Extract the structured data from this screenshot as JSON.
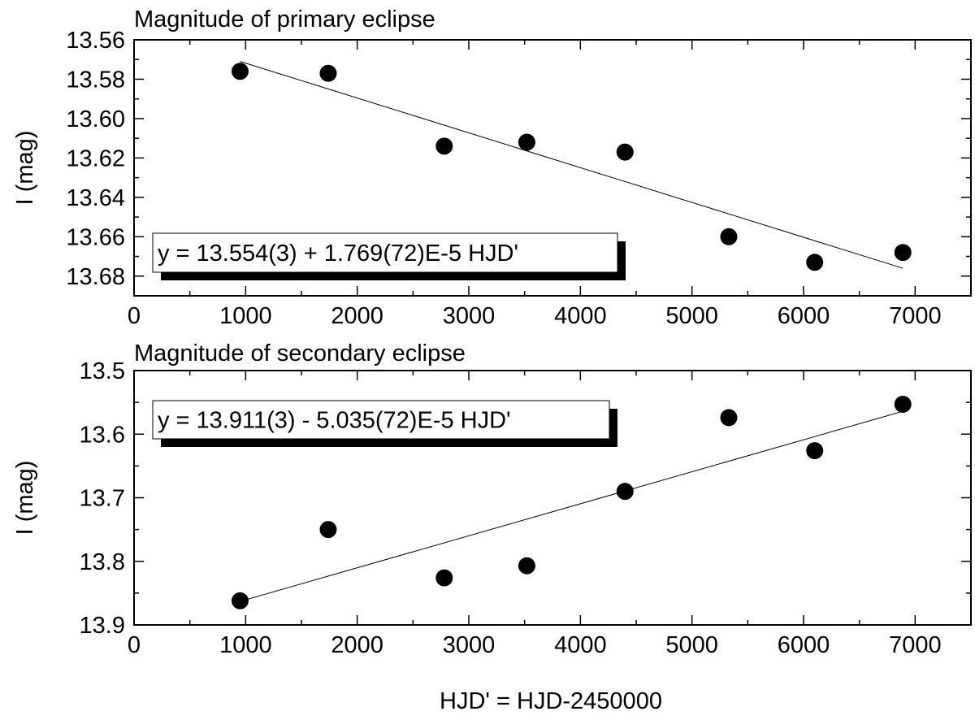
{
  "xlabel": "HJD' = HJD-2450000",
  "chart_data": [
    {
      "type": "scatter",
      "title": "Magnitude of primary eclipse",
      "xlabel": "",
      "ylabel": "I (mag)",
      "xlim": [
        0,
        7500
      ],
      "ylim": [
        13.56,
        13.69
      ],
      "y_inverted": true,
      "xticks": [
        0,
        1000,
        2000,
        3000,
        4000,
        5000,
        6000,
        7000
      ],
      "xtick_labels": [
        "0",
        "1000",
        "2000",
        "3000",
        "4000",
        "5000",
        "6000",
        "7000"
      ],
      "yticks": [
        13.56,
        13.58,
        13.6,
        13.62,
        13.64,
        13.66,
        13.68
      ],
      "ytick_labels": [
        "13.56",
        "13.58",
        "13.60",
        "13.62",
        "13.64",
        "13.66",
        "13.68"
      ],
      "x": [
        950,
        1740,
        2780,
        3520,
        4400,
        5330,
        6100,
        6890
      ],
      "y": [
        13.576,
        13.577,
        13.614,
        13.612,
        13.617,
        13.66,
        13.673,
        13.668
      ],
      "fit": {
        "x": [
          950,
          6890
        ],
        "y": [
          13.571,
          13.676
        ]
      },
      "annotation": "y = 13.554(3) + 1.769(72)E-5 HJD'",
      "grid": false
    },
    {
      "type": "scatter",
      "title": "Magnitude of secondary eclipse",
      "xlabel": "",
      "ylabel": "I (mag)",
      "xlim": [
        0,
        7500
      ],
      "ylim": [
        13.5,
        13.9
      ],
      "y_inverted": true,
      "xticks": [
        0,
        1000,
        2000,
        3000,
        4000,
        5000,
        6000,
        7000
      ],
      "xtick_labels": [
        "0",
        "1000",
        "2000",
        "3000",
        "4000",
        "5000",
        "6000",
        "7000"
      ],
      "yticks": [
        13.5,
        13.6,
        13.7,
        13.8,
        13.9
      ],
      "ytick_labels": [
        "13.5",
        "13.6",
        "13.7",
        "13.8",
        "13.9"
      ],
      "x": [
        950,
        1740,
        2780,
        3520,
        4400,
        5330,
        6100,
        6890
      ],
      "y": [
        13.862,
        13.75,
        13.826,
        13.807,
        13.69,
        13.574,
        13.626,
        13.553
      ],
      "fit": {
        "x": [
          950,
          6890
        ],
        "y": [
          13.863,
          13.564
        ]
      },
      "annotation": "y = 13.911(3) - 5.035(72)E-5 HJD'",
      "grid": false
    }
  ]
}
